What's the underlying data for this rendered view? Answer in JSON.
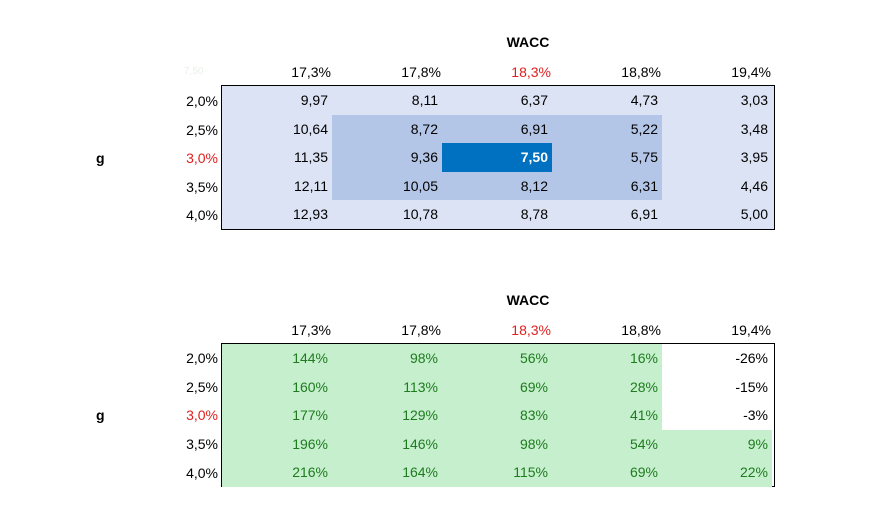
{
  "table1": {
    "title": "WACC",
    "corner": "7,50",
    "axis_label": "g",
    "columns": [
      "17,3%",
      "17,8%",
      "18,3%",
      "18,8%",
      "19,4%"
    ],
    "rows": [
      "2,0%",
      "2,5%",
      "3,0%",
      "3,5%",
      "4,0%"
    ],
    "highlight_color": "#e02020",
    "values": [
      [
        "9,97",
        "8,11",
        "6,37",
        "4,73",
        "3,03"
      ],
      [
        "10,64",
        "8,72",
        "6,91",
        "5,22",
        "3,48"
      ],
      [
        "11,35",
        "9,36",
        "7,50",
        "5,75",
        "3,95"
      ],
      [
        "12,11",
        "10,05",
        "8,12",
        "6,31",
        "4,46"
      ],
      [
        "12,93",
        "10,78",
        "8,78",
        "6,91",
        "5,00"
      ]
    ],
    "colors": {
      "base": "#dce3f4",
      "inner": "#b4c6e7",
      "center": "#0070c0"
    }
  },
  "table2": {
    "title": "WACC",
    "corner": "",
    "axis_label": "g",
    "columns": [
      "17,3%",
      "17,8%",
      "18,3%",
      "18,8%",
      "19,4%"
    ],
    "rows": [
      "2,0%",
      "2,5%",
      "3,0%",
      "3,5%",
      "4,0%"
    ],
    "values": [
      [
        "144%",
        "98%",
        "56%",
        "16%",
        "-26%"
      ],
      [
        "160%",
        "113%",
        "69%",
        "28%",
        "-15%"
      ],
      [
        "177%",
        "129%",
        "83%",
        "41%",
        "-3%"
      ],
      [
        "196%",
        "146%",
        "98%",
        "54%",
        "9%"
      ],
      [
        "216%",
        "164%",
        "115%",
        "69%",
        "22%"
      ]
    ],
    "colors": {
      "positive": "#c6efce",
      "positive_text": "#1e7b1e"
    }
  }
}
